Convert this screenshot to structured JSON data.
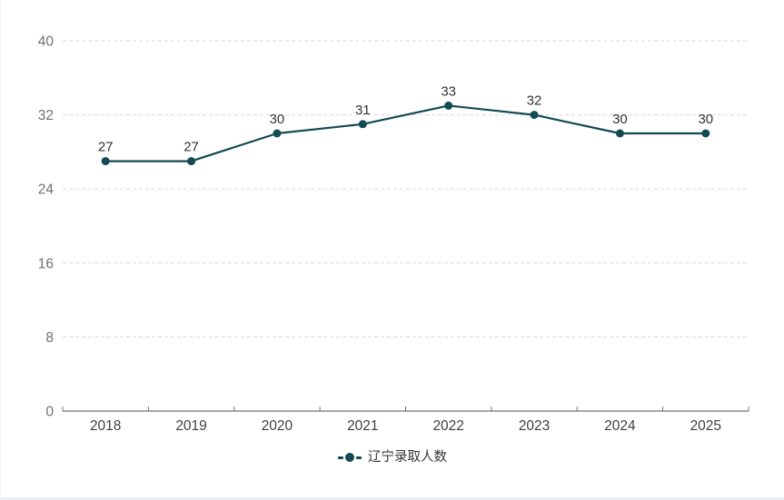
{
  "chart_data": {
    "type": "line",
    "categories": [
      "2018",
      "2019",
      "2020",
      "2021",
      "2022",
      "2023",
      "2024",
      "2025"
    ],
    "series": [
      {
        "name": "辽宁录取人数",
        "values": [
          27,
          27,
          30,
          31,
          33,
          32,
          30,
          30
        ]
      }
    ],
    "title": "",
    "xlabel": "",
    "ylabel": "",
    "ylim": [
      0,
      40
    ],
    "yticks": [
      0,
      8,
      16,
      24,
      32,
      40
    ],
    "grid": "horizontal-dashed",
    "legend_position": "bottom-center",
    "data_labels": true
  },
  "colors": {
    "series": "#144a54",
    "grid": "#d8d8d8",
    "axis": "#757575",
    "xtick_label": "#3b4045",
    "ytick_label": "#6c7077",
    "data_label": "#303336",
    "legend_text": "#333333",
    "background": "#ffffff"
  }
}
